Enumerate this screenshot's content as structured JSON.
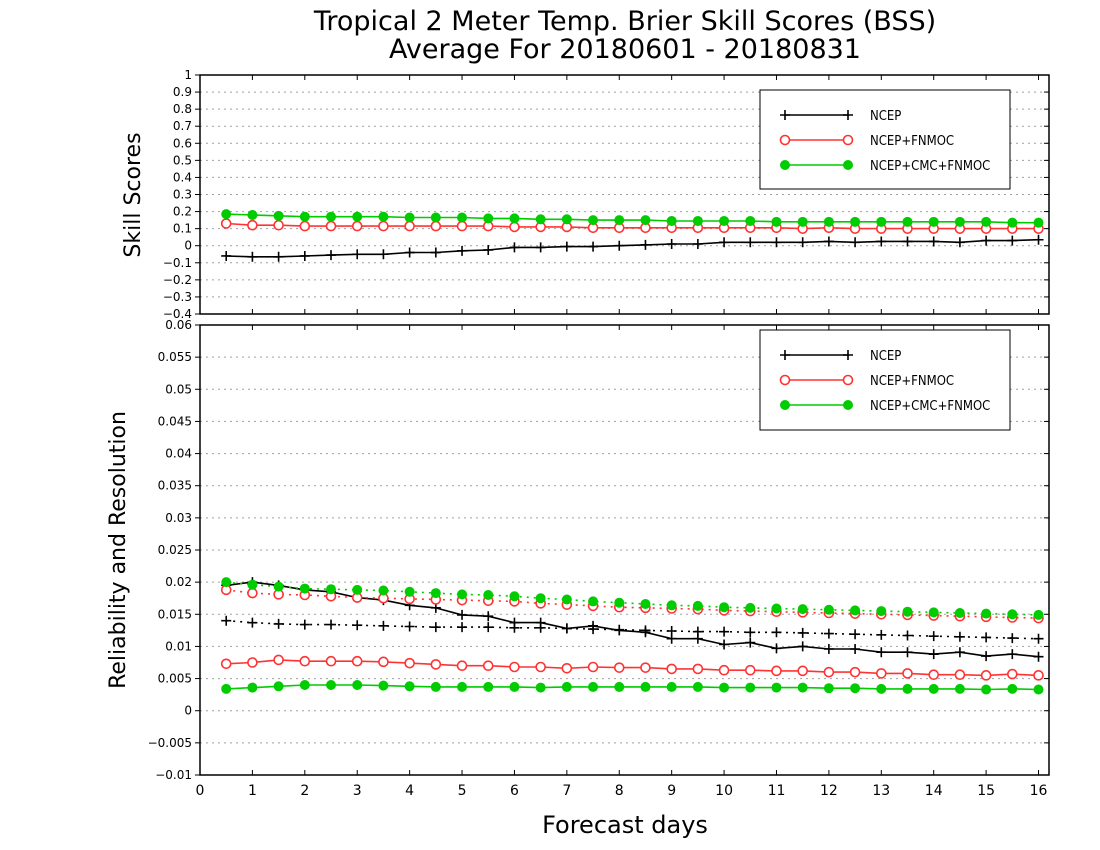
{
  "title_line1": "Tropical 2 Meter Temp. Brier Skill Scores (BSS)",
  "title_line2": "Average For 20180601 - 20180831",
  "xlabel": "Forecast days",
  "colors": {
    "NCEP": "#000000",
    "NCEP+FNMOC": "#ff3333",
    "NCEP+CMC+FNMOC": "#00cc00",
    "grid": "#a0a0a0"
  },
  "chart_data": [
    {
      "type": "line",
      "panel": "top",
      "ylabel": "Skill Scores",
      "xlim": [
        0,
        16.2
      ],
      "ylim": [
        -0.4,
        1
      ],
      "x_ticks": [
        "0",
        "1",
        "2",
        "3",
        "4",
        "5",
        "6",
        "7",
        "8",
        "9",
        "10",
        "11",
        "12",
        "13",
        "14",
        "15",
        "16"
      ],
      "y_ticks": [
        "1",
        "0.9",
        "0.8",
        "0.7",
        "0.6",
        "0.5",
        "0.4",
        "0.3",
        "0.2",
        "0.1",
        "0",
        "−0.1",
        "−0.2",
        "−0.3",
        "−0.4"
      ],
      "y_tick_values": [
        1,
        0.9,
        0.8,
        0.7,
        0.6,
        0.5,
        0.4,
        0.3,
        0.2,
        0.1,
        0,
        -0.1,
        -0.2,
        -0.3,
        -0.4
      ],
      "grid": true,
      "legend_position": "top-right",
      "x": [
        0.5,
        1,
        1.5,
        2,
        2.5,
        3,
        3.5,
        4,
        4.5,
        5,
        5.5,
        6,
        6.5,
        7,
        7.5,
        8,
        8.5,
        9,
        9.5,
        10,
        10.5,
        11,
        11.5,
        12,
        12.5,
        13,
        13.5,
        14,
        14.5,
        15,
        15.5,
        16
      ],
      "series": [
        {
          "name": "NCEP",
          "color": "#000000",
          "marker": "plus",
          "linestyle": "solid",
          "values": [
            -0.06,
            -0.065,
            -0.065,
            -0.06,
            -0.055,
            -0.05,
            -0.05,
            -0.04,
            -0.04,
            -0.03,
            -0.025,
            -0.01,
            -0.01,
            -0.005,
            -0.005,
            0.0,
            0.005,
            0.01,
            0.01,
            0.02,
            0.02,
            0.02,
            0.02,
            0.025,
            0.02,
            0.025,
            0.025,
            0.025,
            0.02,
            0.03,
            0.03,
            0.035
          ]
        },
        {
          "name": "NCEP+FNMOC",
          "color": "#ff3333",
          "marker": "circle-open",
          "linestyle": "solid",
          "values": [
            0.13,
            0.12,
            0.12,
            0.115,
            0.115,
            0.115,
            0.115,
            0.115,
            0.115,
            0.115,
            0.115,
            0.11,
            0.11,
            0.11,
            0.105,
            0.105,
            0.105,
            0.105,
            0.105,
            0.105,
            0.105,
            0.105,
            0.1,
            0.105,
            0.1,
            0.1,
            0.1,
            0.1,
            0.1,
            0.1,
            0.1,
            0.1
          ]
        },
        {
          "name": "NCEP+CMC+FNMOC",
          "color": "#00cc00",
          "marker": "circle-filled",
          "linestyle": "solid",
          "values": [
            0.185,
            0.18,
            0.175,
            0.17,
            0.17,
            0.17,
            0.17,
            0.165,
            0.165,
            0.165,
            0.16,
            0.16,
            0.155,
            0.155,
            0.15,
            0.15,
            0.15,
            0.145,
            0.145,
            0.145,
            0.145,
            0.14,
            0.14,
            0.14,
            0.14,
            0.14,
            0.14,
            0.14,
            0.14,
            0.14,
            0.135,
            0.135
          ]
        }
      ]
    },
    {
      "type": "line",
      "panel": "bottom",
      "ylabel": "Reliability and Resolution",
      "xlabel": "Forecast days",
      "xlim": [
        0,
        16.2
      ],
      "ylim": [
        -0.01,
        0.06
      ],
      "x_ticks": [
        "0",
        "1",
        "2",
        "3",
        "4",
        "5",
        "6",
        "7",
        "8",
        "9",
        "10",
        "11",
        "12",
        "13",
        "14",
        "15",
        "16"
      ],
      "y_ticks": [
        "0.06",
        "0.055",
        "0.05",
        "0.045",
        "0.04",
        "0.035",
        "0.03",
        "0.025",
        "0.02",
        "0.015",
        "0.01",
        "0.005",
        "0",
        "−0.005",
        "−0.01"
      ],
      "y_tick_values": [
        0.06,
        0.055,
        0.05,
        0.045,
        0.04,
        0.035,
        0.03,
        0.025,
        0.02,
        0.015,
        0.01,
        0.005,
        0,
        -0.005,
        -0.01
      ],
      "grid": true,
      "legend_position": "top-right",
      "x": [
        0.5,
        1,
        1.5,
        2,
        2.5,
        3,
        3.5,
        4,
        4.5,
        5,
        5.5,
        6,
        6.5,
        7,
        7.5,
        8,
        8.5,
        9,
        9.5,
        10,
        10.5,
        11,
        11.5,
        12,
        12.5,
        13,
        13.5,
        14,
        14.5,
        15,
        15.5,
        16
      ],
      "legend": [
        {
          "name": "NCEP",
          "color": "#000000",
          "marker": "plus"
        },
        {
          "name": "NCEP+FNMOC",
          "color": "#ff3333",
          "marker": "circle-open"
        },
        {
          "name": "NCEP+CMC+FNMOC",
          "color": "#00cc00",
          "marker": "circle-filled"
        }
      ],
      "series": [
        {
          "name": "NCEP",
          "color": "#000000",
          "marker": "plus",
          "linestyle": "solid",
          "values": [
            0.0195,
            0.02,
            0.0195,
            0.0188,
            0.0185,
            0.0176,
            0.0172,
            0.0164,
            0.016,
            0.0149,
            0.0147,
            0.0137,
            0.0137,
            0.0128,
            0.0132,
            0.0125,
            0.0122,
            0.0112,
            0.0112,
            0.0103,
            0.0106,
            0.0097,
            0.01,
            0.0096,
            0.0096,
            0.0091,
            0.0091,
            0.0088,
            0.0091,
            0.0085,
            0.0088,
            0.0084
          ]
        },
        {
          "name": "NCEP",
          "color": "#000000",
          "marker": "plus",
          "linestyle": "dotted",
          "values": [
            0.014,
            0.0137,
            0.0135,
            0.0134,
            0.0134,
            0.0133,
            0.0132,
            0.0131,
            0.013,
            0.013,
            0.013,
            0.0129,
            0.0129,
            0.0128,
            0.0127,
            0.0126,
            0.0125,
            0.0124,
            0.0123,
            0.0123,
            0.0122,
            0.0122,
            0.0121,
            0.012,
            0.0119,
            0.0118,
            0.0117,
            0.0116,
            0.0115,
            0.0114,
            0.0113,
            0.0112
          ]
        },
        {
          "name": "NCEP+FNMOC",
          "color": "#ff3333",
          "marker": "circle-open",
          "linestyle": "solid",
          "values": [
            0.0073,
            0.0075,
            0.0079,
            0.0077,
            0.0077,
            0.0077,
            0.0076,
            0.0074,
            0.0072,
            0.007,
            0.007,
            0.0068,
            0.0068,
            0.0066,
            0.0068,
            0.0067,
            0.0067,
            0.0065,
            0.0065,
            0.0063,
            0.0063,
            0.0062,
            0.0062,
            0.006,
            0.006,
            0.0058,
            0.0058,
            0.0056,
            0.0056,
            0.0055,
            0.0057,
            0.0055
          ]
        },
        {
          "name": "NCEP+FNMOC",
          "color": "#ff3333",
          "marker": "circle-open",
          "linestyle": "dotted",
          "values": [
            0.0188,
            0.0183,
            0.0181,
            0.018,
            0.0178,
            0.0176,
            0.0175,
            0.0174,
            0.0173,
            0.0172,
            0.0171,
            0.017,
            0.0167,
            0.0165,
            0.0163,
            0.0161,
            0.016,
            0.0159,
            0.0158,
            0.0156,
            0.0155,
            0.0154,
            0.0153,
            0.0152,
            0.0151,
            0.015,
            0.0149,
            0.0148,
            0.0147,
            0.0146,
            0.0145,
            0.0144
          ]
        },
        {
          "name": "NCEP+CMC+FNMOC",
          "color": "#00cc00",
          "marker": "circle-filled",
          "linestyle": "solid",
          "values": [
            0.0034,
            0.0036,
            0.0038,
            0.004,
            0.004,
            0.004,
            0.0039,
            0.0038,
            0.0037,
            0.0037,
            0.0037,
            0.0037,
            0.0036,
            0.0037,
            0.0037,
            0.0037,
            0.0037,
            0.0037,
            0.0037,
            0.0036,
            0.0036,
            0.0036,
            0.0036,
            0.0035,
            0.0035,
            0.0034,
            0.0034,
            0.0034,
            0.0034,
            0.0033,
            0.0034,
            0.0033
          ]
        },
        {
          "name": "NCEP+CMC+FNMOC",
          "color": "#00cc00",
          "marker": "circle-filled",
          "linestyle": "dotted",
          "values": [
            0.02,
            0.0196,
            0.0193,
            0.019,
            0.0189,
            0.0188,
            0.0187,
            0.0185,
            0.0183,
            0.0181,
            0.018,
            0.0178,
            0.0175,
            0.0173,
            0.017,
            0.0168,
            0.0166,
            0.0164,
            0.0163,
            0.0161,
            0.016,
            0.0159,
            0.0158,
            0.0157,
            0.0156,
            0.0155,
            0.0154,
            0.0153,
            0.0152,
            0.0151,
            0.015,
            0.0149
          ]
        }
      ]
    }
  ]
}
